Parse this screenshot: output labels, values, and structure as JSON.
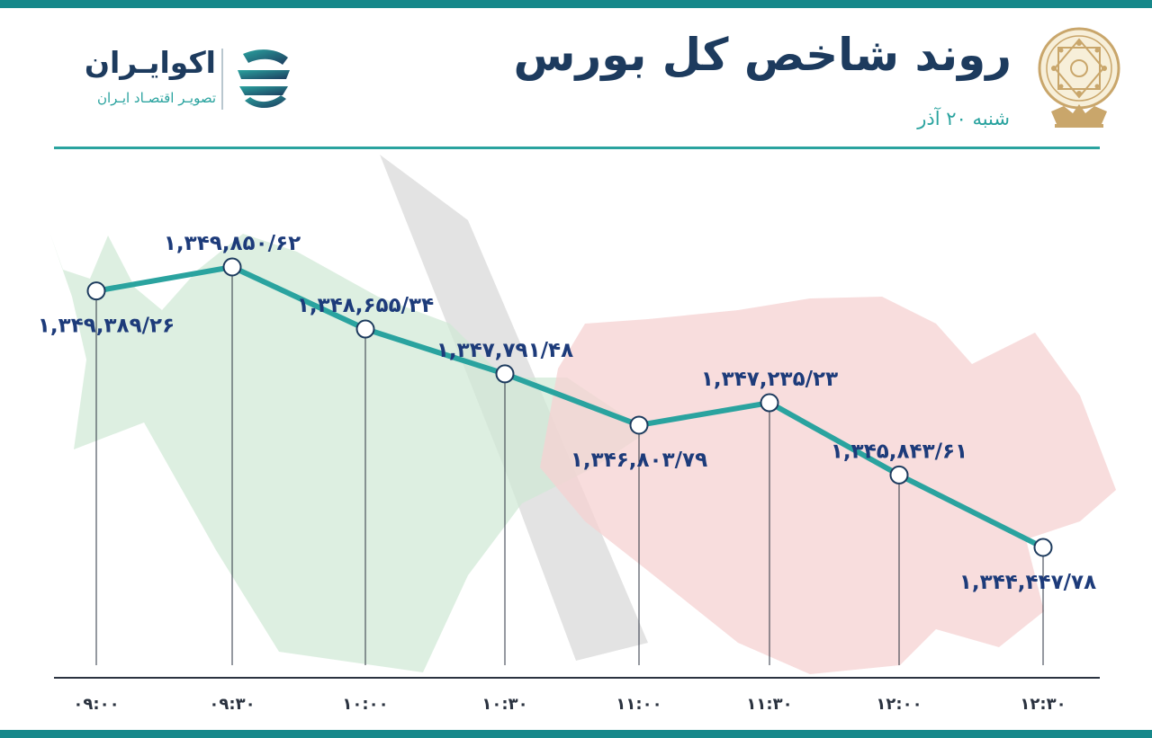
{
  "header": {
    "title": "روند شاخص کل بورس",
    "subtitle": "شنبه ۲۰ آذر"
  },
  "logo": {
    "name": "اکوایـران",
    "tagline": "تصویـر اقتصـاد ایـران"
  },
  "colors": {
    "accent": "#16888a",
    "line": "#2aa39f",
    "title": "#1d3b5e",
    "label": "#1d3b7a",
    "bull": "#cfe8d4",
    "bear": "#f6d2d2",
    "shadow": "#dddddd"
  },
  "chart_data": {
    "type": "line",
    "x": [
      "۰۹:۰۰",
      "۰۹:۳۰",
      "۱۰:۰۰",
      "۱۰:۳۰",
      "۱۱:۰۰",
      "۱۱:۳۰",
      "۱۲:۰۰",
      "۱۲:۳۰"
    ],
    "values": [
      1349389.26,
      1349850.62,
      1348655.34,
      1347791.48,
      1346803.79,
      1347235.23,
      1345843.61,
      1344447.78
    ],
    "data_labels": [
      "۱,۳۴۹,۳۸۹/۲۶",
      "۱,۳۴۹,۸۵۰/۶۲",
      "۱,۳۴۸,۶۵۵/۳۴",
      "۱,۳۴۷,۷۹۱/۴۸",
      "۱,۳۴۶,۸۰۳/۷۹",
      "۱,۳۴۷,۲۳۵/۲۳",
      "۱,۳۴۵,۸۴۳/۶۱",
      "۱,۳۴۴,۴۴۷/۷۸"
    ],
    "label_positions": [
      "below",
      "above",
      "above",
      "above",
      "below",
      "above",
      "above",
      "below"
    ],
    "ylim": [
      1343000,
      1350500
    ],
    "grid": false
  }
}
